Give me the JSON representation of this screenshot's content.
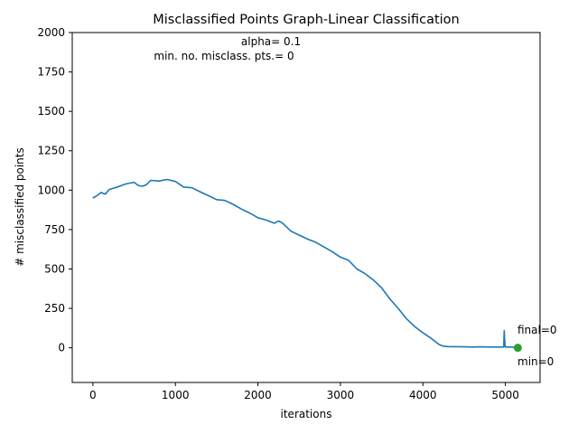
{
  "chart_data": {
    "type": "line",
    "title": "Misclassified Points Graph-Linear Classification",
    "xlabel": "iterations",
    "ylabel": "# misclassified points",
    "xlim": [
      -250,
      5420
    ],
    "ylim": [
      -220,
      2000
    ],
    "xticks": [
      0,
      1000,
      2000,
      3000,
      4000,
      5000
    ],
    "yticks": [
      0,
      250,
      500,
      750,
      1000,
      1250,
      1500,
      1750,
      2000
    ],
    "grid": false,
    "line_color": "#1f77b4",
    "marker_color": "#2ca02c",
    "annotations": {
      "alpha": "alpha= 0.1",
      "min_pts": "min. no. misclass. pts.= 0",
      "final": "final=0",
      "min": "min=0"
    },
    "series": [
      {
        "x": [
          0,
          50,
          100,
          150,
          200,
          300,
          400,
          500,
          550,
          600,
          650,
          700,
          800,
          900,
          1000,
          1100,
          1200,
          1300,
          1400,
          1500,
          1600,
          1700,
          1800,
          1900,
          2000,
          2100,
          2200,
          2250,
          2300,
          2400,
          2500,
          2600,
          2700,
          2800,
          2900,
          3000,
          3100,
          3200,
          3300,
          3400,
          3500,
          3600,
          3700,
          3800,
          3900,
          4000,
          4100,
          4200,
          4250,
          4300,
          4350,
          4400,
          4500,
          4600,
          4700,
          4800,
          4900,
          4980,
          4985,
          4990,
          4995,
          5000,
          5050,
          5100,
          5150
        ],
        "values": [
          950,
          965,
          985,
          975,
          1005,
          1020,
          1040,
          1050,
          1030,
          1025,
          1035,
          1062,
          1058,
          1068,
          1055,
          1020,
          1015,
          990,
          965,
          940,
          935,
          910,
          880,
          855,
          825,
          810,
          790,
          805,
          790,
          740,
          715,
          690,
          670,
          640,
          610,
          575,
          555,
          500,
          470,
          430,
          380,
          310,
          250,
          185,
          135,
          95,
          60,
          20,
          10,
          8,
          7,
          7,
          6,
          5,
          6,
          5,
          5,
          5,
          110,
          60,
          15,
          5,
          5,
          3,
          0
        ]
      }
    ],
    "final_point": {
      "x": 5150,
      "y": 0
    }
  }
}
